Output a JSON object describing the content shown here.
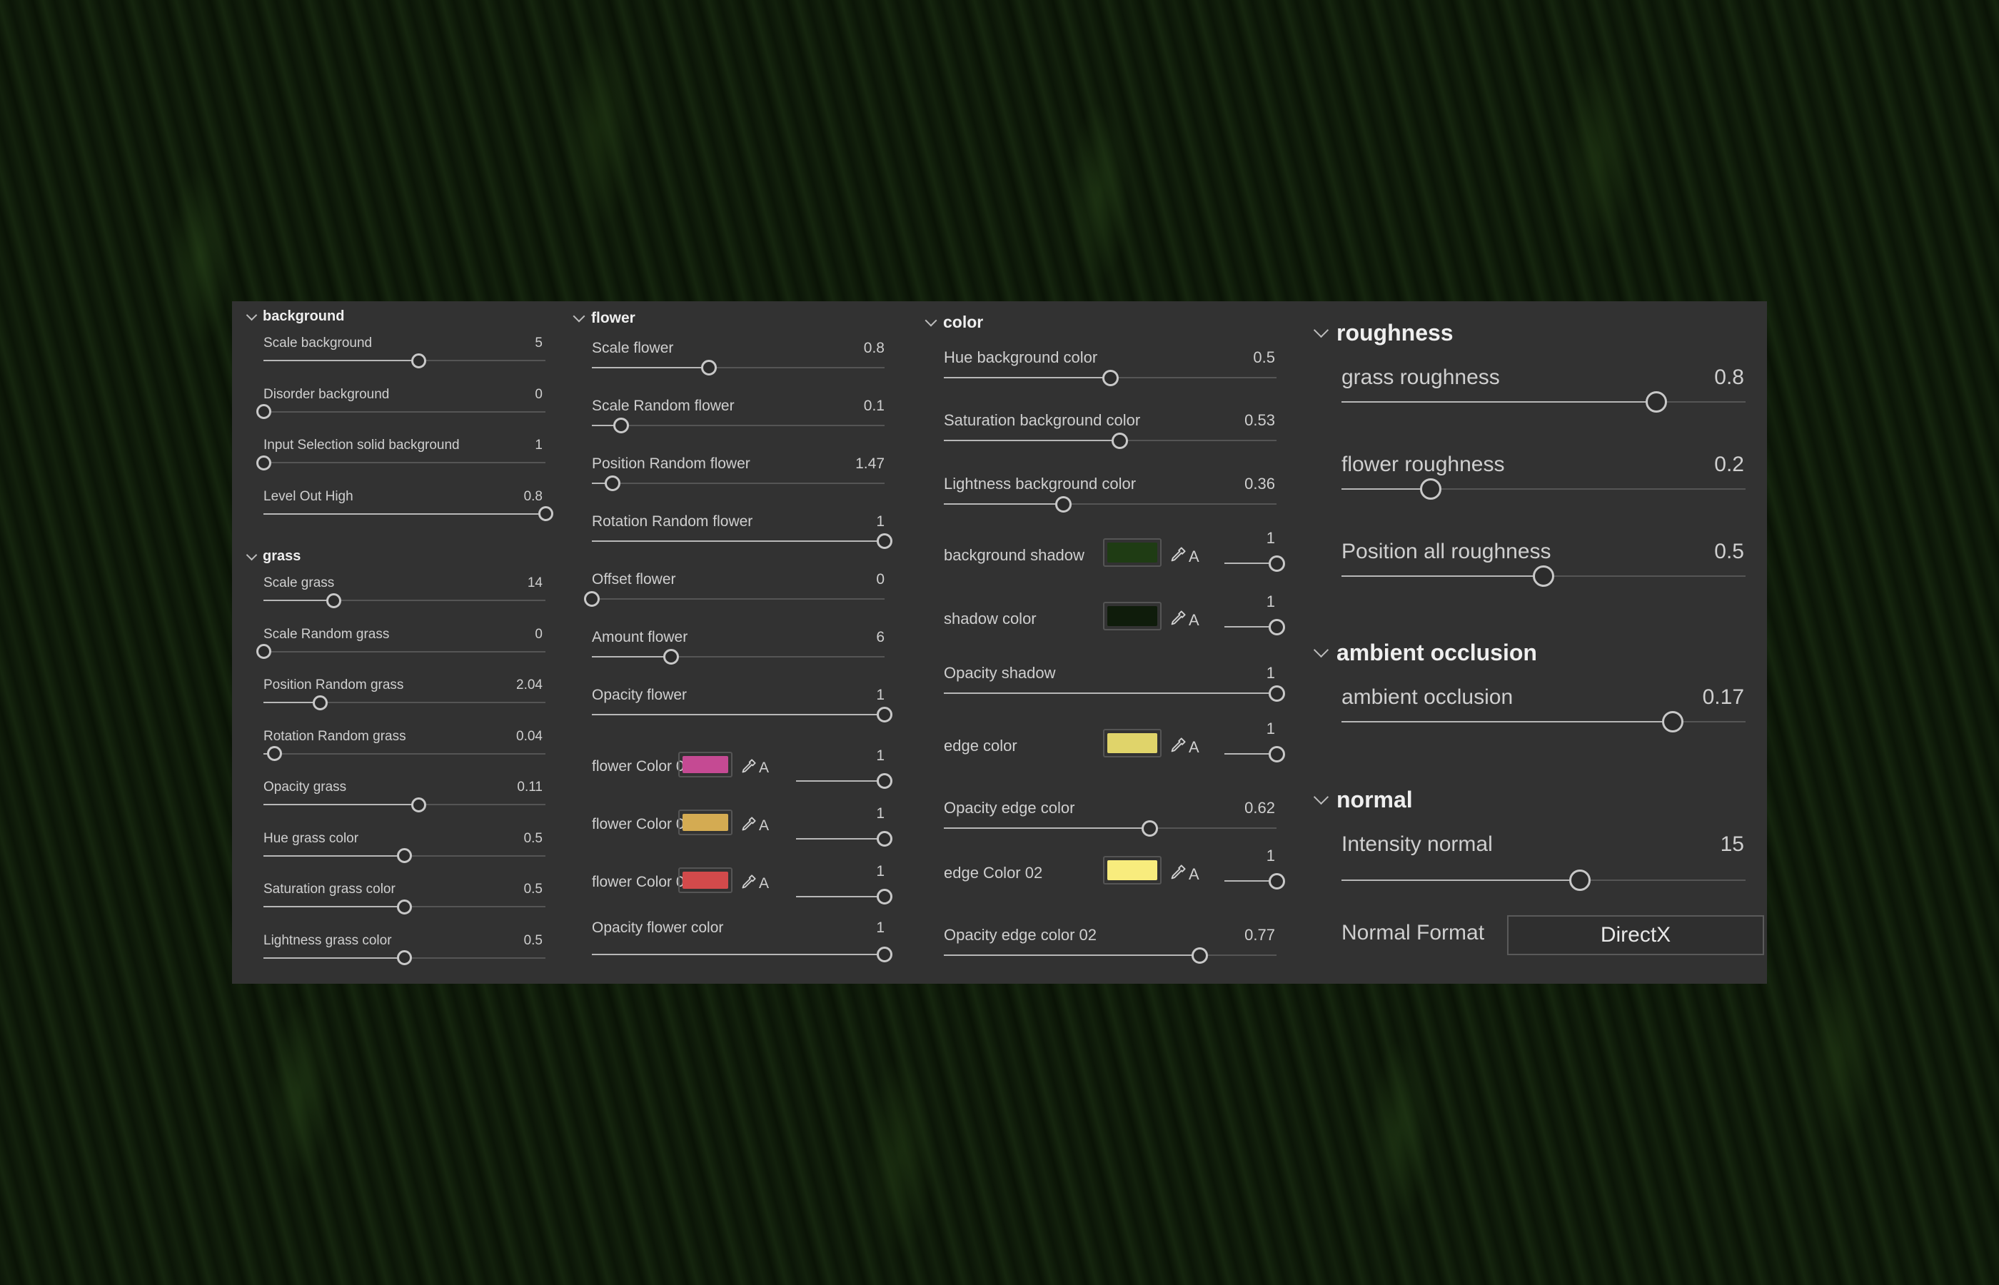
{
  "background_group": {
    "title": "background",
    "rows": [
      {
        "label": "Scale background",
        "value": "5",
        "fraction": 0.55
      },
      {
        "label": "Disorder background",
        "value": "0",
        "fraction": 0.0
      },
      {
        "label": "Input Selection solid background",
        "value": "1",
        "fraction": 0.0
      },
      {
        "label": "Level Out High",
        "value": "0.8",
        "fraction": 1.0
      }
    ]
  },
  "grass_group": {
    "title": "grass",
    "rows": [
      {
        "label": "Scale grass",
        "value": "14",
        "fraction": 0.25
      },
      {
        "label": "Scale Random grass",
        "value": "0",
        "fraction": 0.0
      },
      {
        "label": "Position Random grass",
        "value": "2.04",
        "fraction": 0.2
      },
      {
        "label": "Rotation Random grass",
        "value": "0.04",
        "fraction": 0.04
      },
      {
        "label": "Opacity grass",
        "value": "0.11",
        "fraction": 0.55
      },
      {
        "label": "Hue grass color",
        "value": "0.5",
        "fraction": 0.5
      },
      {
        "label": "Saturation grass color",
        "value": "0.5",
        "fraction": 0.5
      },
      {
        "label": "Lightness grass color",
        "value": "0.5",
        "fraction": 0.5
      }
    ]
  },
  "flower_group": {
    "title": "flower",
    "rows": [
      {
        "label": "Scale flower",
        "value": "0.8",
        "fraction": 0.4
      },
      {
        "label": "Scale Random flower",
        "value": "0.1",
        "fraction": 0.1
      },
      {
        "label": "Position Random flower",
        "value": "1.47",
        "fraction": 0.07
      },
      {
        "label": "Rotation Random flower",
        "value": "1",
        "fraction": 1.0
      },
      {
        "label": "Offset flower",
        "value": "0",
        "fraction": 0.0
      },
      {
        "label": "Amount flower",
        "value": "6",
        "fraction": 0.27
      },
      {
        "label": "Opacity flower",
        "value": "1",
        "fraction": 1.0
      }
    ],
    "color_rows": [
      {
        "label": "flower Color 01",
        "color": "#c54a93",
        "alpha_label": "A",
        "value": "1",
        "fraction": 1.0
      },
      {
        "label": "flower Color 02",
        "color": "#d4ab52",
        "alpha_label": "A",
        "value": "1",
        "fraction": 1.0
      },
      {
        "label": "flower Color 03",
        "color": "#d24a4b",
        "alpha_label": "A",
        "value": "1",
        "fraction": 1.0
      }
    ],
    "opacity_color": {
      "label": "Opacity flower color",
      "value": "1",
      "fraction": 1.0
    }
  },
  "color_group": {
    "title": "color",
    "rows": [
      {
        "type": "slider",
        "label": "Hue background color",
        "value": "0.5",
        "fraction": 0.5
      },
      {
        "type": "slider",
        "label": "Saturation background color",
        "value": "0.53",
        "fraction": 0.53
      },
      {
        "type": "slider",
        "label": "Lightness background color",
        "value": "0.36",
        "fraction": 0.36
      },
      {
        "type": "color",
        "label": "background shadow",
        "color": "#1f3c14",
        "alpha_label": "A",
        "value": "1",
        "fraction": 1.0
      },
      {
        "type": "color",
        "label": "shadow color",
        "color": "#0f1c0b",
        "alpha_label": "A",
        "value": "1",
        "fraction": 1.0
      },
      {
        "type": "slider",
        "label": "Opacity shadow",
        "value": "1",
        "fraction": 1.0
      },
      {
        "type": "color",
        "label": "edge color",
        "color": "#e0d46a",
        "alpha_label": "A",
        "value": "1",
        "fraction": 1.0
      },
      {
        "type": "slider",
        "label": "Opacity edge color",
        "value": "0.62",
        "fraction": 0.62
      },
      {
        "type": "color",
        "label": "edge Color 02",
        "color": "#f8ec7d",
        "alpha_label": "A",
        "value": "1",
        "fraction": 1.0
      },
      {
        "type": "slider",
        "label": "Opacity edge color 02",
        "value": "0.77",
        "fraction": 0.77
      }
    ]
  },
  "roughness_group": {
    "title": "roughness",
    "rows": [
      {
        "label": "grass roughness",
        "value": "0.8",
        "fraction": 0.78
      },
      {
        "label": "flower roughness",
        "value": "0.2",
        "fraction": 0.22
      },
      {
        "label": "Position all roughness",
        "value": "0.5",
        "fraction": 0.5
      }
    ]
  },
  "ao_group": {
    "title": "ambient occlusion",
    "rows": [
      {
        "label": "ambient occlusion",
        "value": "0.17",
        "fraction": 0.82
      }
    ]
  },
  "normal_group": {
    "title": "normal",
    "rows": [
      {
        "label": "Intensity normal",
        "value": "15",
        "fraction": 0.59
      }
    ],
    "format_label": "Normal Format",
    "format_value": "DirectX"
  },
  "colors": {
    "panel_bg": "#323232",
    "track": "#555555",
    "track_fill": "#b8b8b8",
    "thumb_border": "#c8c8c8",
    "text": "#cfcfcf"
  }
}
